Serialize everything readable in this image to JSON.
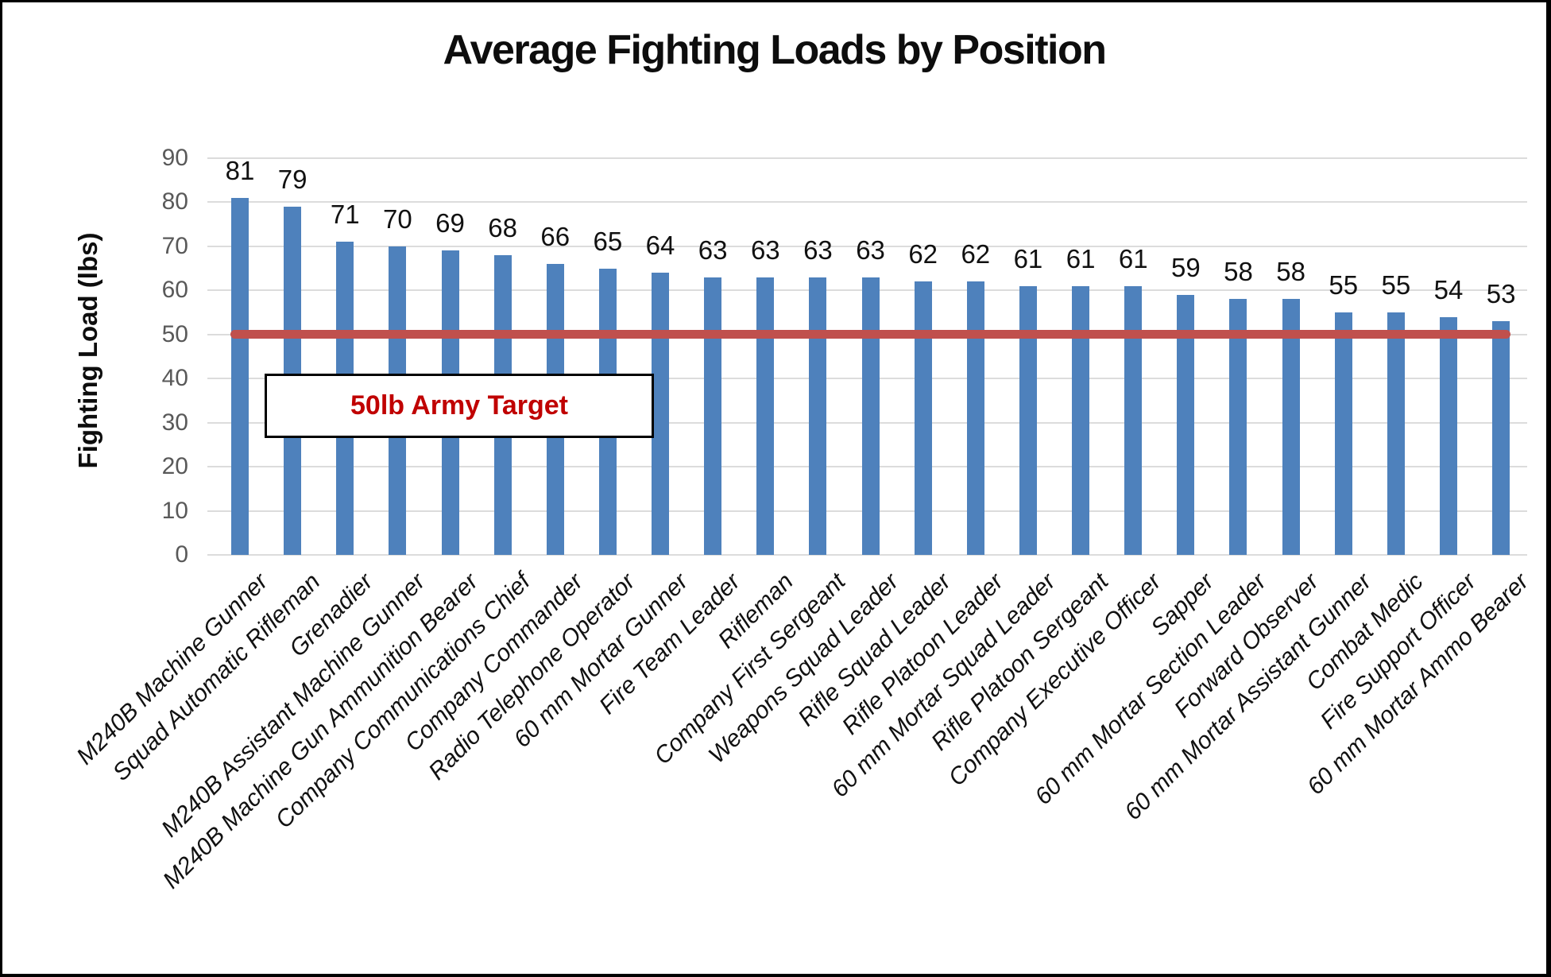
{
  "chart_data": {
    "type": "bar",
    "title": "Average Fighting Loads by Position",
    "xlabel": "",
    "ylabel": "Fighting Load (lbs)",
    "ylim": [
      0,
      90
    ],
    "ytick_interval": 10,
    "yticks": [
      90,
      80,
      70,
      60,
      50,
      40,
      30,
      20,
      10,
      0
    ],
    "grid": true,
    "legend": "none",
    "categories": [
      "M240B Machine Gunner",
      "Squad Automatic Rifleman",
      "Grenadier",
      "M240B Assistant Machine Gunner",
      "M240B Machine Gun Ammunition Bearer",
      "Company Communications Chief",
      "Company Commander",
      "Radio Telephone Operator",
      "60 mm Mortar Gunner",
      "Fire Team Leader",
      "Rifleman",
      "Company First Sergeant",
      "Weapons Squad Leader",
      "Rifle Squad Leader",
      "Rifle Platoon Leader",
      "60 mm Mortar Squad Leader",
      "Rifle Platoon Sergeant",
      "Company Executive Officer",
      "Sapper",
      "60 mm Mortar Section Leader",
      "Forward Observer",
      "60 mm Mortar Assistant Gunner",
      "Combat Medic",
      "Fire Support Officer",
      "60 mm Mortar Ammo Bearer"
    ],
    "values": [
      81,
      79,
      71,
      70,
      69,
      68,
      66,
      65,
      64,
      63,
      63,
      63,
      63,
      62,
      62,
      61,
      61,
      61,
      59,
      58,
      58,
      55,
      55,
      54,
      53
    ],
    "data_labels_shown": true,
    "target_line": {
      "value": 50,
      "label": "50lb Army Target",
      "line_color": "#C0504D",
      "label_color": "#C00000"
    },
    "colors": {
      "bar": "#4E81BC",
      "gridline": "#DCDCDC",
      "tick_label": "#595959",
      "data_label": "#111111",
      "category_label": "#111111",
      "title": "#0d0d0d",
      "background": "#ffffff",
      "frame_border": "#000000"
    }
  }
}
